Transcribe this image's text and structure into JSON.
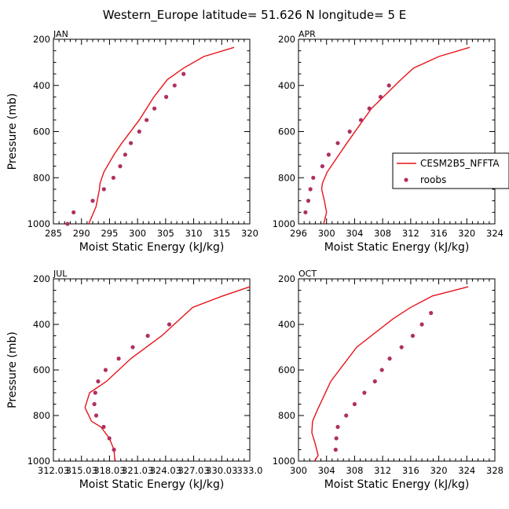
{
  "title": "Western_Europe  latitude= 51.626 N longitude= 5 E",
  "colors": {
    "model": "#e8141a",
    "obs": "#b03060",
    "axis": "#000000"
  },
  "legend": {
    "model_label": "CESM2B5_NFFTA",
    "obs_label": "roobs"
  },
  "chart_data": [
    {
      "type": "line",
      "panel": "JAN",
      "title": "JAN",
      "xlabel": "Moist Static Energy (kJ/kg)",
      "ylabel": "Pressure (mb)",
      "xlim": [
        285,
        320
      ],
      "ylim": [
        1000,
        200
      ],
      "xticks": [
        285,
        290,
        295,
        300,
        305,
        310,
        315,
        320
      ],
      "xtick_labels": [
        "285",
        "290",
        "295",
        "300",
        "305",
        "310",
        "315",
        "320"
      ],
      "yticks": [
        200,
        400,
        600,
        800,
        1000
      ],
      "ytick_labels": [
        "200",
        "400",
        "600",
        "800",
        "1000"
      ],
      "series": [
        {
          "name": "CESM2B5_NFFTA",
          "kind": "line",
          "x": [
            291.3,
            292.6,
            293.2,
            293.3,
            294.0,
            295.8,
            297.2,
            300.3,
            302.9,
            305.3,
            308.2,
            311.8,
            317.2
          ],
          "y": [
            1000,
            925,
            850,
            825,
            775,
            700,
            650,
            550,
            450,
            375,
            325,
            275,
            235
          ]
        },
        {
          "name": "roobs",
          "kind": "points",
          "x": [
            287.5,
            288.6,
            292.0,
            294.0,
            295.7,
            296.9,
            297.8,
            298.8,
            300.3,
            301.6,
            303.0,
            305.1,
            306.6,
            308.2
          ],
          "y": [
            1000,
            950,
            900,
            850,
            800,
            750,
            700,
            650,
            600,
            550,
            500,
            450,
            400,
            350
          ]
        }
      ]
    },
    {
      "type": "line",
      "panel": "APR",
      "title": "APR",
      "xlabel": "Moist Static Energy (kJ/kg)",
      "ylabel": "",
      "xlim": [
        296,
        324
      ],
      "ylim": [
        1000,
        200
      ],
      "xticks": [
        296,
        300,
        304,
        308,
        312,
        316,
        320,
        324
      ],
      "xtick_labels": [
        "296",
        "300",
        "304",
        "308",
        "312",
        "316",
        "320",
        "324"
      ],
      "yticks": [
        200,
        400,
        600,
        800,
        1000
      ],
      "ytick_labels": [
        "200",
        "400",
        "600",
        "800",
        "1000"
      ],
      "legend": true,
      "series": [
        {
          "name": "CESM2B5_NFFTA",
          "kind": "line",
          "x": [
            299.6,
            300.0,
            299.7,
            299.3,
            299.4,
            300.1,
            302.9,
            306.4,
            310.6,
            312.4,
            316.0,
            320.4
          ],
          "y": [
            1000,
            950,
            900,
            850,
            825,
            775,
            650,
            500,
            375,
            325,
            275,
            235
          ]
        },
        {
          "name": "roobs",
          "kind": "points",
          "x": [
            297.0,
            297.4,
            297.7,
            298.1,
            299.4,
            300.3,
            301.6,
            303.3,
            304.9,
            306.1,
            307.7,
            308.9
          ],
          "y": [
            950,
            900,
            850,
            800,
            750,
            700,
            650,
            600,
            550,
            500,
            450,
            400
          ]
        }
      ]
    },
    {
      "type": "line",
      "panel": "JUL",
      "title": "JUL",
      "xlabel": "Moist Static Energy (kJ/kg)",
      "ylabel": "Pressure (mb)",
      "xlim": [
        312.03,
        333.0
      ],
      "ylim": [
        1000,
        200
      ],
      "xticks": [
        312.03,
        315.03,
        318.03,
        321.03,
        324.03,
        327.03,
        330.03,
        333.0
      ],
      "xtick_labels": [
        "312.03",
        "315.03",
        "318.03",
        "321.03",
        "324.03",
        "327.03",
        "330.03",
        "333.0"
      ],
      "yticks": [
        200,
        400,
        600,
        800,
        1000
      ],
      "ytick_labels": [
        "200",
        "400",
        "600",
        "800",
        "1000"
      ],
      "series": [
        {
          "name": "CESM2B5_NFFTA",
          "kind": "line",
          "x": [
            318.6,
            318.5,
            318.0,
            317.1,
            316.1,
            315.4,
            315.9,
            317.7,
            320.3,
            323.6,
            326.9,
            330.1,
            333.0
          ],
          "y": [
            1000,
            950,
            900,
            850,
            825,
            765,
            700,
            650,
            550,
            450,
            325,
            275,
            235
          ]
        },
        {
          "name": "roobs",
          "kind": "points",
          "x": [
            318.5,
            318.0,
            317.4,
            316.6,
            316.4,
            316.5,
            316.8,
            317.6,
            319.0,
            320.5,
            322.1,
            324.4
          ],
          "y": [
            950,
            900,
            850,
            800,
            750,
            700,
            650,
            600,
            550,
            500,
            450,
            400
          ]
        }
      ]
    },
    {
      "type": "line",
      "panel": "OCT",
      "title": "OCT",
      "xlabel": "Moist Static Energy (kJ/kg)",
      "ylabel": "",
      "xlim": [
        300,
        328
      ],
      "ylim": [
        1000,
        200
      ],
      "xticks": [
        300,
        304,
        308,
        312,
        316,
        320,
        324,
        328
      ],
      "xtick_labels": [
        "300",
        "304",
        "308",
        "312",
        "316",
        "320",
        "324",
        "328"
      ],
      "yticks": [
        200,
        400,
        600,
        800,
        1000
      ],
      "ytick_labels": [
        "200",
        "400",
        "600",
        "800",
        "1000"
      ],
      "series": [
        {
          "name": "CESM2B5_NFFTA",
          "kind": "line",
          "x": [
            302.3,
            302.8,
            302.4,
            301.9,
            302.0,
            302.7,
            304.6,
            308.3,
            313.5,
            316.0,
            319.1,
            324.2
          ],
          "y": [
            1000,
            975,
            925,
            875,
            825,
            775,
            650,
            500,
            375,
            325,
            275,
            235
          ]
        },
        {
          "name": "roobs",
          "kind": "points",
          "x": [
            305.3,
            305.4,
            305.6,
            306.8,
            308.0,
            309.4,
            310.9,
            311.9,
            313.0,
            314.7,
            316.3,
            317.6,
            318.9
          ],
          "y": [
            950,
            900,
            850,
            800,
            750,
            700,
            650,
            600,
            550,
            500,
            450,
            400,
            350
          ]
        }
      ]
    }
  ]
}
